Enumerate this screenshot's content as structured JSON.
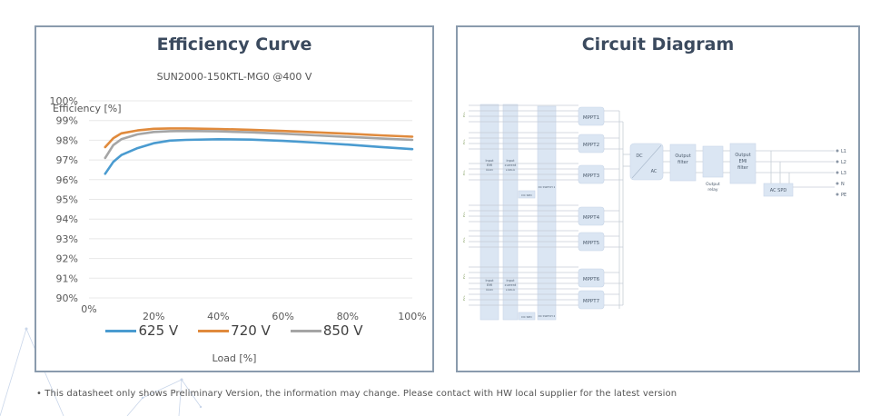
{
  "efficiency_panel": {
    "title": "Efficiency Curve",
    "subtitle": "SUN2000-150KTL-MG0 @400 V",
    "ylabel": "Efficiency [%]",
    "xlabel": "Load [%]"
  },
  "circuit_panel": {
    "title": "Circuit Diagram",
    "blocks": {
      "input_emi_filter": "Input EMI filter",
      "input_current_check": "Input current check",
      "dc_spd": "DC SPD",
      "dc_switch_1": "DC SWITCH 1",
      "dc_switch_2": "DC SWITCH 2",
      "mppt": [
        "MPPT1",
        "MPPT2",
        "MPPT3",
        "MPPT4",
        "MPPT5",
        "MPPT6",
        "MPPT7"
      ],
      "dc": "DC",
      "ac": "AC",
      "output_filter": "Output filter",
      "output_relay": "Output relay",
      "output_emi_filter": "Output EMI filter",
      "ac_spd": "AC SPD",
      "outputs": [
        "L1",
        "L2",
        "L3",
        "N",
        "PE"
      ]
    }
  },
  "footnote": "This datasheet only shows Preliminary Version, the information may change. Please contact with HW  local supplier for the latest version",
  "footnote_bullet": "•",
  "chart_data": {
    "type": "line",
    "title": "Efficiency Curve",
    "subtitle": "SUN2000-150KTL-MG0 @400 V",
    "xlabel": "Load [%]",
    "ylabel": "Efficiency [%]",
    "xlim": [
      0,
      100
    ],
    "ylim": [
      90,
      100
    ],
    "x_ticks": [
      "0%",
      "20%",
      "40%",
      "60%",
      "80%",
      "100%"
    ],
    "y_ticks": [
      "90%",
      "91%",
      "92%",
      "93%",
      "94%",
      "95%",
      "96%",
      "97%",
      "98%",
      "99%",
      "100%"
    ],
    "grid": true,
    "legend_position": "bottom",
    "x": [
      5,
      7.5,
      10,
      15,
      20,
      25,
      30,
      40,
      50,
      60,
      70,
      80,
      90,
      100
    ],
    "series": [
      {
        "name": "625 V",
        "color": "#4a9bd0",
        "values": [
          96.3,
          96.9,
          97.25,
          97.6,
          97.85,
          97.98,
          98.02,
          98.05,
          98.03,
          97.97,
          97.88,
          97.78,
          97.66,
          97.55
        ]
      },
      {
        "name": "720 V",
        "color": "#e08a3c",
        "values": [
          97.65,
          98.1,
          98.35,
          98.5,
          98.58,
          98.6,
          98.6,
          98.57,
          98.53,
          98.47,
          98.4,
          98.33,
          98.25,
          98.18
        ]
      },
      {
        "name": "850 V",
        "color": "#a5a5a5",
        "values": [
          97.1,
          97.75,
          98.05,
          98.3,
          98.42,
          98.46,
          98.47,
          98.45,
          98.4,
          98.33,
          98.25,
          98.17,
          98.09,
          98.02
        ]
      }
    ]
  }
}
